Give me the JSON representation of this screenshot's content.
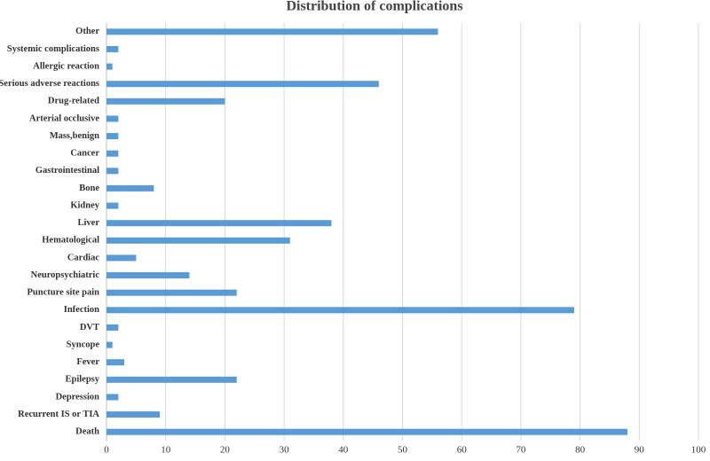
{
  "chart_data": {
    "type": "hbar",
    "title": "Distribution of complications",
    "categories": [
      "Other",
      "Systemic complications",
      "Allergic reaction",
      "Serious adverse reactions",
      "Drug-related",
      "Arterial occlusive",
      "Mass,benign",
      "Cancer",
      "Gastrointestinal",
      "Bone",
      "Kidney",
      "Liver",
      "Hematological",
      "Cardiac",
      "Neuropsychiatric",
      "Puncture site pain",
      "Infection",
      "DVT",
      "Syncope",
      "Fever",
      "Epilepsy",
      "Depression",
      "Recurrent IS or TIA",
      "Death"
    ],
    "values": [
      56,
      2,
      1,
      46,
      20,
      2,
      2,
      2,
      2,
      8,
      2,
      38,
      31,
      5,
      14,
      22,
      79,
      2,
      1,
      3,
      22,
      2,
      9,
      88
    ],
    "color": "#5b9bd5",
    "xlim": [
      0,
      100
    ],
    "xticks": [
      0,
      10,
      20,
      30,
      40,
      50,
      60,
      70,
      80,
      90,
      100
    ],
    "grid": true
  }
}
